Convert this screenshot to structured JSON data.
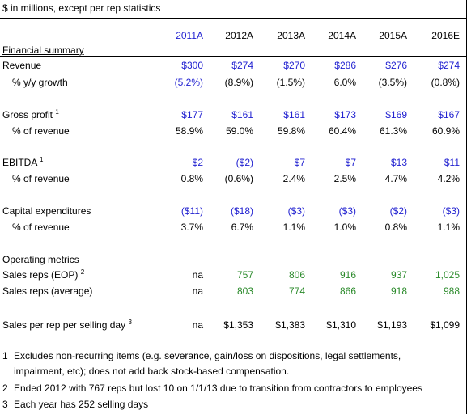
{
  "header_note": "$ in millions, except per rep statistics",
  "years": [
    "2011A",
    "2012A",
    "2013A",
    "2014A",
    "2015A",
    "2016E"
  ],
  "sections": {
    "financial_summary": "Financial summary",
    "operating_metrics": "Operating metrics"
  },
  "rows": [
    {
      "key": "revenue",
      "label": "Revenue",
      "indent": false,
      "sup": "",
      "values": [
        "$300",
        "$274",
        "$270",
        "$286",
        "$276",
        "$274"
      ],
      "colors": [
        "blue",
        "blue",
        "blue",
        "blue",
        "blue",
        "blue"
      ]
    },
    {
      "key": "revenue_growth",
      "label": "% y/y growth",
      "indent": true,
      "sup": "",
      "values": [
        "(5.2%)",
        "(8.9%)",
        "(1.5%)",
        "6.0%",
        "(3.5%)",
        "(0.8%)"
      ],
      "colors": [
        "blue",
        "black",
        "black",
        "black",
        "black",
        "black"
      ]
    },
    {
      "key": "gross_profit",
      "label": "Gross profit",
      "indent": false,
      "sup": "1",
      "values": [
        "$177",
        "$161",
        "$161",
        "$173",
        "$169",
        "$167"
      ],
      "colors": [
        "blue",
        "blue",
        "blue",
        "blue",
        "blue",
        "blue"
      ]
    },
    {
      "key": "gross_pct",
      "label": "% of revenue",
      "indent": true,
      "sup": "",
      "values": [
        "58.9%",
        "59.0%",
        "59.8%",
        "60.4%",
        "61.3%",
        "60.9%"
      ],
      "colors": [
        "black",
        "black",
        "black",
        "black",
        "black",
        "black"
      ]
    },
    {
      "key": "ebitda",
      "label": "EBITDA",
      "indent": false,
      "sup": "1",
      "values": [
        "$2",
        "($2)",
        "$7",
        "$7",
        "$13",
        "$11"
      ],
      "colors": [
        "blue",
        "blue",
        "blue",
        "blue",
        "blue",
        "blue"
      ]
    },
    {
      "key": "ebitda_pct",
      "label": "% of revenue",
      "indent": true,
      "sup": "",
      "values": [
        "0.8%",
        "(0.6%)",
        "2.4%",
        "2.5%",
        "4.7%",
        "4.2%"
      ],
      "colors": [
        "black",
        "black",
        "black",
        "black",
        "black",
        "black"
      ]
    },
    {
      "key": "capex",
      "label": "Capital expenditures",
      "indent": false,
      "sup": "",
      "values": [
        "($11)",
        "($18)",
        "($3)",
        "($3)",
        "($2)",
        "($3)"
      ],
      "colors": [
        "blue",
        "blue",
        "blue",
        "blue",
        "blue",
        "blue"
      ]
    },
    {
      "key": "capex_pct",
      "label": "% of revenue",
      "indent": true,
      "sup": "",
      "values": [
        "3.7%",
        "6.7%",
        "1.1%",
        "1.0%",
        "0.8%",
        "1.1%"
      ],
      "colors": [
        "black",
        "black",
        "black",
        "black",
        "black",
        "black"
      ]
    },
    {
      "key": "reps_eop",
      "label": "Sales reps (EOP)",
      "indent": false,
      "sup": "2",
      "values": [
        "na",
        "757",
        "806",
        "916",
        "937",
        "1,025"
      ],
      "colors": [
        "black",
        "green",
        "green",
        "green",
        "green",
        "green"
      ]
    },
    {
      "key": "reps_avg",
      "label": "Sales reps (average)",
      "indent": false,
      "sup": "",
      "values": [
        "na",
        "803",
        "774",
        "866",
        "918",
        "988"
      ],
      "colors": [
        "black",
        "green",
        "green",
        "green",
        "green",
        "green"
      ]
    },
    {
      "key": "sales_per_rep",
      "label": "Sales per rep per selling day",
      "indent": false,
      "sup": "3",
      "values": [
        "na",
        "$1,353",
        "$1,383",
        "$1,310",
        "$1,193",
        "$1,099"
      ],
      "colors": [
        "black",
        "black",
        "black",
        "black",
        "black",
        "black"
      ]
    }
  ],
  "footnotes": [
    {
      "num": "1",
      "lines": [
        "Excludes non-recurring items (e.g. severance, gain/loss on dispositions, legal settlements,",
        "impairment, etc); does not add back stock-based compensation."
      ]
    },
    {
      "num": "2",
      "lines": [
        "Ended 2012 with 767 reps but lost 10 on 1/1/13 due to transition from contractors to employees"
      ]
    },
    {
      "num": "3",
      "lines": [
        "Each year has 252 selling days"
      ]
    }
  ],
  "colors": {
    "blue": "#1f1fd0",
    "green": "#2a8a2a",
    "black": "#000000"
  }
}
